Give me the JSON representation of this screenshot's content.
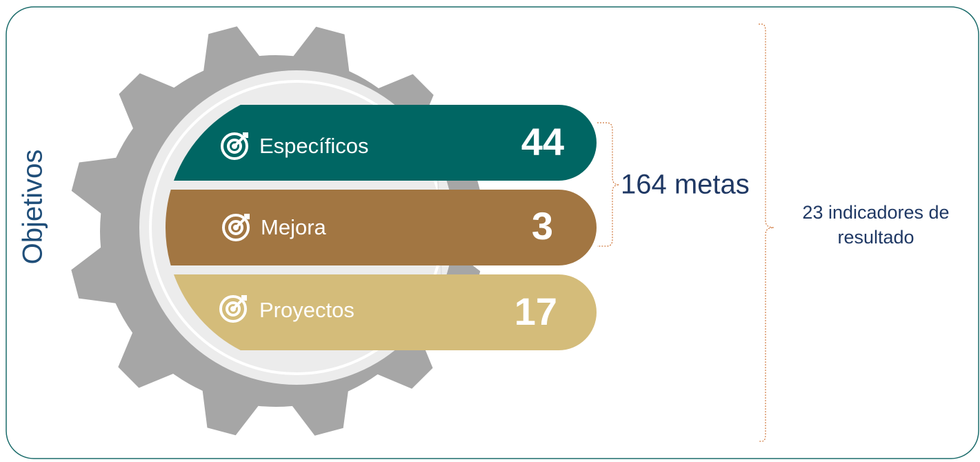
{
  "side_label": "Objetivos",
  "rows": [
    {
      "label": "Específicos",
      "value": 44
    },
    {
      "label": "Mejora",
      "value": 3
    },
    {
      "label": "Proyectos",
      "value": 17
    }
  ],
  "goals_label": "164 metas",
  "indicators_label": "23 indicadores de resultado"
}
